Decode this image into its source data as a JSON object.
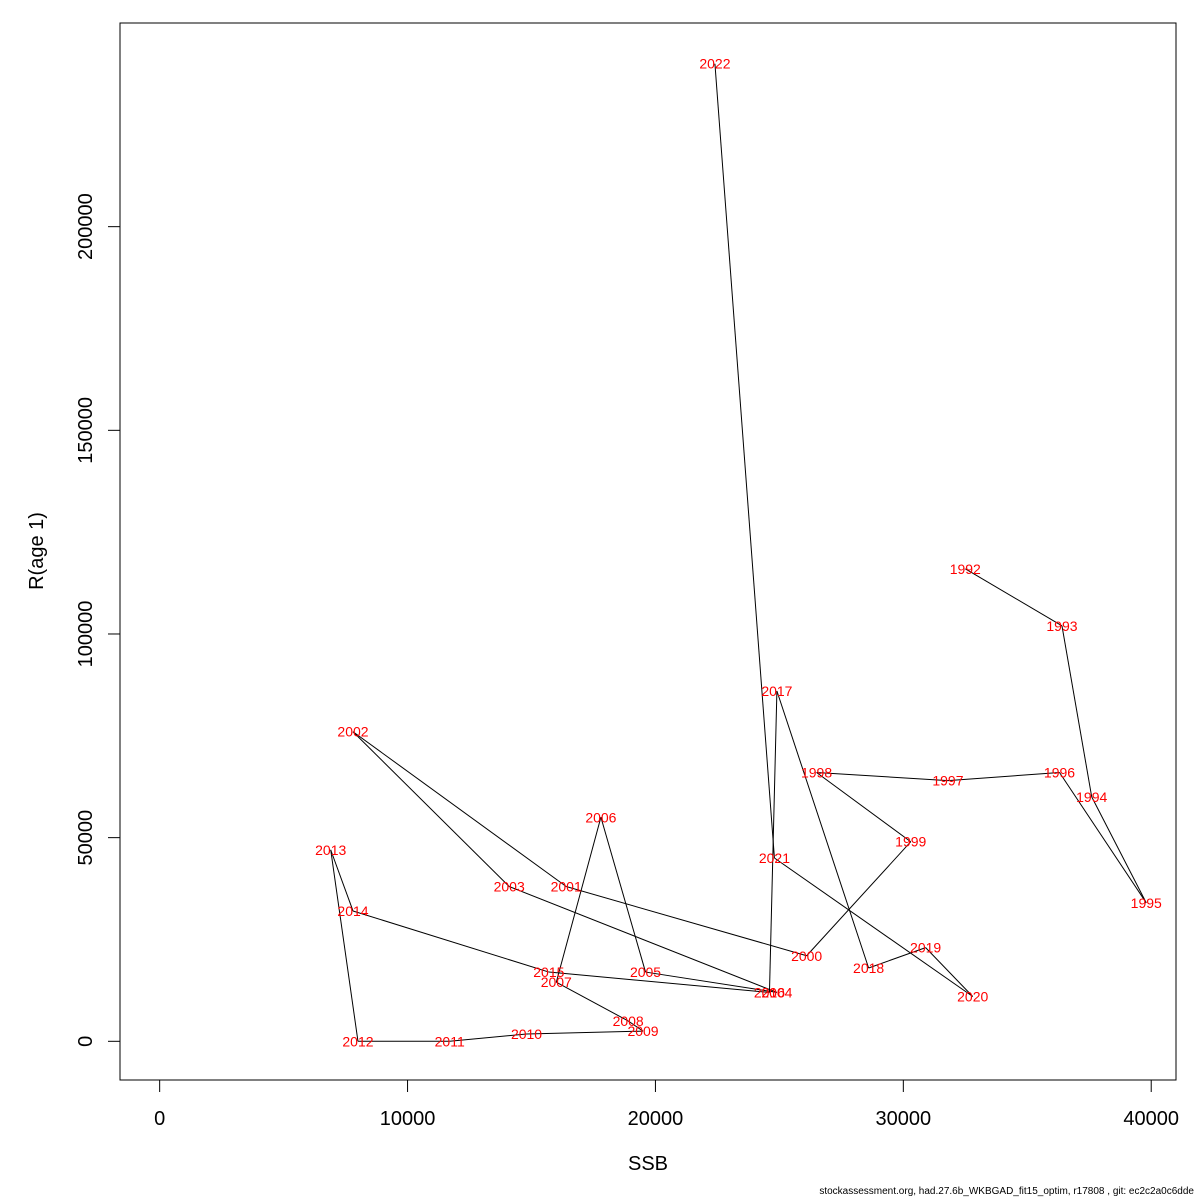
{
  "chart_data": {
    "type": "line",
    "title": "",
    "xlabel": "SSB",
    "ylabel": "R(age 1)",
    "xlim": [
      -1600,
      41000
    ],
    "ylim": [
      -9500,
      250000
    ],
    "xticks": [
      0,
      10000,
      20000,
      30000,
      40000
    ],
    "yticks": [
      0,
      50000,
      100000,
      150000,
      200000
    ],
    "grid": false,
    "line_color": "#000000",
    "label_color": "#ff0000",
    "points": [
      {
        "label": "1992",
        "x": 32500,
        "y": 116000
      },
      {
        "label": "1993",
        "x": 36400,
        "y": 102000
      },
      {
        "label": "1994",
        "x": 37600,
        "y": 60000
      },
      {
        "label": "1995",
        "x": 39800,
        "y": 34000
      },
      {
        "label": "1996",
        "x": 36300,
        "y": 66000
      },
      {
        "label": "1997",
        "x": 31800,
        "y": 64000
      },
      {
        "label": "1998",
        "x": 26500,
        "y": 66000
      },
      {
        "label": "1999",
        "x": 30300,
        "y": 49000
      },
      {
        "label": "2000",
        "x": 26100,
        "y": 21000
      },
      {
        "label": "2001",
        "x": 16400,
        "y": 38000
      },
      {
        "label": "2002",
        "x": 7800,
        "y": 76000
      },
      {
        "label": "2003",
        "x": 14100,
        "y": 38000
      },
      {
        "label": "2004",
        "x": 24900,
        "y": 12000
      },
      {
        "label": "2005",
        "x": 19600,
        "y": 17000
      },
      {
        "label": "2006",
        "x": 17800,
        "y": 55000
      },
      {
        "label": "2007",
        "x": 16000,
        "y": 14500
      },
      {
        "label": "2008",
        "x": 18900,
        "y": 5000
      },
      {
        "label": "2009",
        "x": 19500,
        "y": 2500
      },
      {
        "label": "2010",
        "x": 14800,
        "y": 1800
      },
      {
        "label": "2011",
        "x": 11700,
        "y": 0
      },
      {
        "label": "2012",
        "x": 8000,
        "y": 0
      },
      {
        "label": "2013",
        "x": 6900,
        "y": 47000
      },
      {
        "label": "2014",
        "x": 7800,
        "y": 32000
      },
      {
        "label": "2015",
        "x": 15700,
        "y": 17000
      },
      {
        "label": "2016",
        "x": 24600,
        "y": 12000
      },
      {
        "label": "2017",
        "x": 24900,
        "y": 86000
      },
      {
        "label": "2018",
        "x": 28600,
        "y": 18000
      },
      {
        "label": "2019",
        "x": 30900,
        "y": 23000
      },
      {
        "label": "2020",
        "x": 32800,
        "y": 11000
      },
      {
        "label": "2021",
        "x": 24800,
        "y": 45000
      },
      {
        "label": "2022",
        "x": 22400,
        "y": 240000
      }
    ]
  },
  "footer": {
    "text": "stockassessment.org, had.27.6b_WKBGAD_fit15_optim, r17808 , git: ec2c2a0c6dde"
  }
}
